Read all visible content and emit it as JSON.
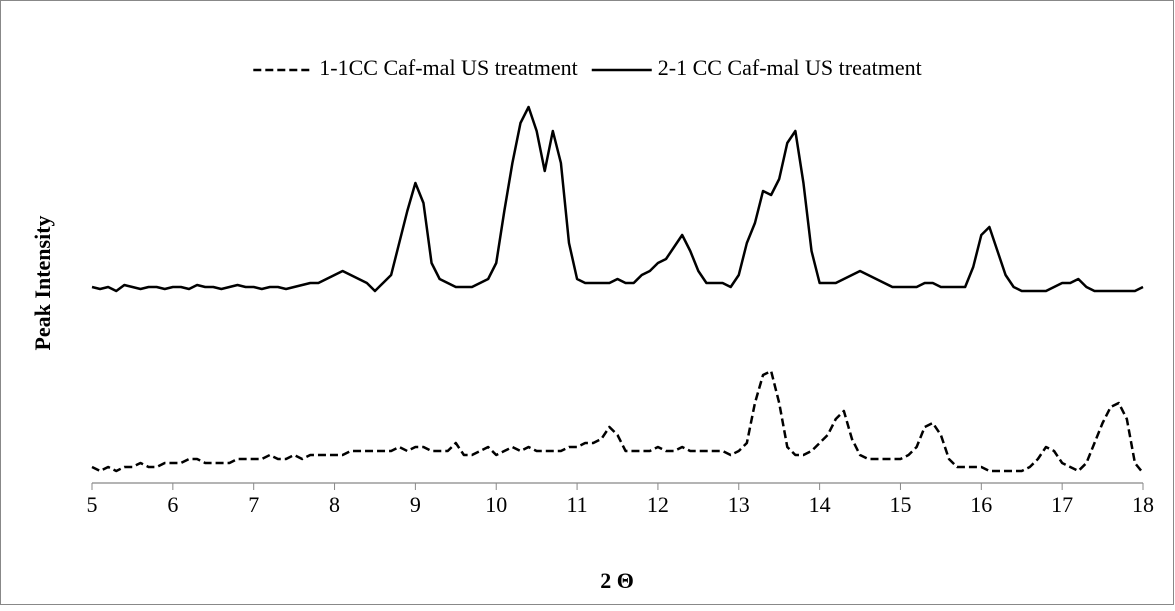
{
  "chart_data": {
    "type": "line",
    "x_label": "2 Θ",
    "y_label": "Peak Intensity",
    "x": [
      5.0,
      5.1,
      5.2,
      5.3,
      5.4,
      5.5,
      5.6,
      5.7,
      5.8,
      5.9,
      6.0,
      6.1,
      6.2,
      6.3,
      6.4,
      6.5,
      6.6,
      6.7,
      6.8,
      6.9,
      7.0,
      7.1,
      7.2,
      7.3,
      7.4,
      7.5,
      7.6,
      7.7,
      7.8,
      7.9,
      8.0,
      8.1,
      8.2,
      8.3,
      8.4,
      8.5,
      8.6,
      8.7,
      8.8,
      8.9,
      9.0,
      9.1,
      9.2,
      9.3,
      9.4,
      9.5,
      9.6,
      9.7,
      9.8,
      9.9,
      10.0,
      10.1,
      10.2,
      10.3,
      10.4,
      10.5,
      10.6,
      10.7,
      10.8,
      10.9,
      11.0,
      11.1,
      11.2,
      11.3,
      11.4,
      11.5,
      11.6,
      11.7,
      11.8,
      11.9,
      12.0,
      12.1,
      12.2,
      12.3,
      12.4,
      12.5,
      12.6,
      12.7,
      12.8,
      12.9,
      13.0,
      13.1,
      13.2,
      13.3,
      13.4,
      13.5,
      13.6,
      13.7,
      13.8,
      13.9,
      14.0,
      14.1,
      14.2,
      14.3,
      14.4,
      14.5,
      14.6,
      14.7,
      14.8,
      14.9,
      15.0,
      15.1,
      15.2,
      15.3,
      15.4,
      15.5,
      15.6,
      15.7,
      15.8,
      15.9,
      16.0,
      16.1,
      16.2,
      16.3,
      16.4,
      16.5,
      16.6,
      16.7,
      16.8,
      16.9,
      17.0,
      17.1,
      17.2,
      17.3,
      17.4,
      17.5,
      17.6,
      17.7,
      17.8,
      17.9,
      18.0
    ],
    "series": [
      {
        "name": "1-1CC Caf-mal US treatment",
        "color": "#000000",
        "line_style": "dashed",
        "values": [
          4,
          3,
          4,
          3,
          4,
          4,
          5,
          4,
          4,
          5,
          5,
          5,
          6,
          6,
          5,
          5,
          5,
          5,
          6,
          6,
          6,
          6,
          7,
          6,
          6,
          7,
          6,
          7,
          7,
          7,
          7,
          7,
          8,
          8,
          8,
          8,
          8,
          8,
          9,
          8,
          9,
          9,
          8,
          8,
          8,
          10,
          7,
          7,
          8,
          9,
          7,
          8,
          9,
          8,
          9,
          8,
          8,
          8,
          8,
          9,
          9,
          10,
          10,
          11,
          14,
          12,
          8,
          8,
          8,
          8,
          9,
          8,
          8,
          9,
          8,
          8,
          8,
          8,
          8,
          7,
          8,
          10,
          20,
          27,
          28,
          20,
          9,
          7,
          7,
          8,
          10,
          12,
          16,
          18,
          11,
          7,
          6,
          6,
          6,
          6,
          6,
          7,
          9,
          14,
          15,
          12,
          6,
          4,
          4,
          4,
          4,
          3,
          3,
          3,
          3,
          3,
          4,
          6,
          9,
          8,
          5,
          4,
          3,
          5,
          10,
          15,
          19,
          20,
          16,
          5,
          2.5
        ]
      },
      {
        "name": "2-1 CC Caf-mal US treatment",
        "color": "#000000",
        "line_style": "solid",
        "values": [
          49,
          48.5,
          49,
          48,
          49.5,
          49,
          48.5,
          49,
          49,
          48.5,
          49,
          49,
          48.5,
          49.5,
          49,
          49,
          48.5,
          49,
          49.5,
          49,
          49,
          48.5,
          49,
          49,
          48.5,
          49,
          49.5,
          50,
          50,
          51,
          52,
          53,
          52,
          51,
          50,
          48,
          50,
          52,
          60,
          68,
          75,
          70,
          55,
          51,
          50,
          49,
          49,
          49,
          50,
          51,
          55,
          68,
          80,
          90,
          94,
          88,
          78,
          88,
          80,
          60,
          51,
          50,
          50,
          50,
          50,
          51,
          50,
          50,
          52,
          53,
          55,
          56,
          59,
          62,
          58,
          53,
          50,
          50,
          50,
          49,
          52,
          60,
          65,
          73,
          72,
          76,
          85,
          88,
          75,
          58,
          50,
          50,
          50,
          51,
          52,
          53,
          52,
          51,
          50,
          49,
          49,
          49,
          49,
          50,
          50,
          49,
          49,
          49,
          49,
          54,
          62,
          64,
          58,
          52,
          49,
          48,
          48,
          48,
          48,
          49,
          50,
          50,
          51,
          49,
          48,
          48,
          48,
          48,
          48,
          48,
          49
        ]
      }
    ],
    "xlim": [
      5,
      18
    ],
    "xticks": [
      5,
      6,
      7,
      8,
      9,
      10,
      11,
      12,
      13,
      14,
      15,
      16,
      17,
      18
    ],
    "ylim": [
      0,
      100
    ],
    "legend": "top"
  }
}
